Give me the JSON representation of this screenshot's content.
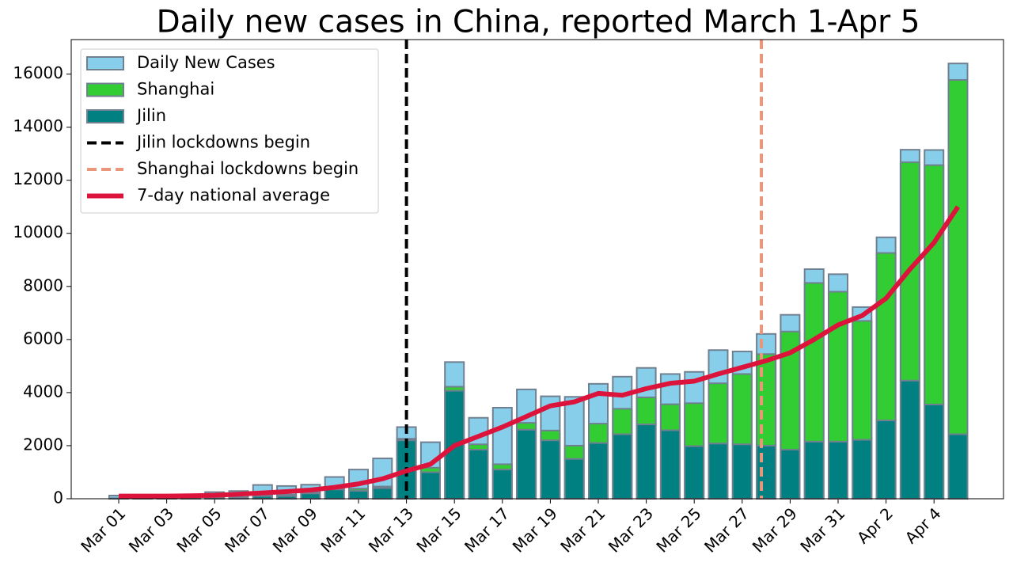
{
  "chart_data": {
    "type": "bar",
    "title": "Daily new cases in China, reported March 1-Apr 5",
    "categories": [
      "Mar 01",
      null,
      "Mar 03",
      null,
      "Mar 05",
      null,
      "Mar 07",
      null,
      "Mar 09",
      null,
      "Mar 11",
      null,
      "Mar 13",
      null,
      "Mar 15",
      null,
      "Mar 17",
      null,
      "Mar 19",
      null,
      "Mar 21",
      null,
      "Mar 23",
      null,
      "Mar 25",
      null,
      "Mar 27",
      null,
      "Mar 29",
      null,
      "Mar 31",
      null,
      "Apr 2",
      null,
      "Apr 4",
      null
    ],
    "series": [
      {
        "name": "Daily New Cases",
        "type": "bar",
        "color": "#87ceeb",
        "values": [
          120,
          100,
          100,
          100,
          250,
          290,
          520,
          480,
          530,
          820,
          1100,
          1520,
          2700,
          2130,
          5150,
          3050,
          3430,
          4120,
          3860,
          3840,
          4330,
          4600,
          4930,
          4700,
          4780,
          5600,
          5550,
          6210,
          6930,
          8650,
          8460,
          7220,
          9850,
          13150,
          13140,
          16400
        ]
      },
      {
        "name": "Shanghai",
        "type": "bar",
        "color": "#32cd32",
        "stack_on": "Jilin",
        "values": [
          0,
          0,
          0,
          0,
          0,
          10,
          20,
          50,
          40,
          60,
          80,
          60,
          60,
          170,
          150,
          200,
          200,
          260,
          370,
          500,
          730,
          960,
          1020,
          980,
          1620,
          2270,
          2650,
          3450,
          4450,
          5980,
          5650,
          4480,
          6310,
          8230,
          9020,
          13350
        ]
      },
      {
        "name": "Jilin",
        "type": "bar",
        "color": "#008080",
        "values": [
          20,
          10,
          10,
          10,
          30,
          50,
          100,
          100,
          200,
          350,
          300,
          400,
          2200,
          1000,
          4070,
          1850,
          1100,
          2600,
          2200,
          1500,
          2100,
          2430,
          2800,
          2580,
          1980,
          2080,
          2050,
          2000,
          1850,
          2150,
          2150,
          2220,
          2950,
          4450,
          3550,
          2430
        ]
      },
      {
        "name": "7-day national average",
        "type": "line",
        "color": "#dc143c",
        "values": [
          100,
          100,
          100,
          110,
          130,
          170,
          220,
          270,
          330,
          430,
          560,
          750,
          1050,
          1300,
          2000,
          2350,
          2700,
          3100,
          3500,
          3650,
          3970,
          3900,
          4150,
          4350,
          4430,
          4700,
          4950,
          5200,
          5500,
          6000,
          6550,
          6900,
          7550,
          8650,
          9650,
          11000
        ]
      }
    ],
    "vlines": [
      {
        "name": "Jilin lockdowns begin",
        "x": 12,
        "color": "#000000"
      },
      {
        "name": "Shanghai lockdowns begin",
        "x": 26.8,
        "color": "#e9967a"
      }
    ],
    "ylim": [
      0,
      17300
    ],
    "yticks": [
      0,
      2000,
      4000,
      6000,
      8000,
      10000,
      12000,
      14000,
      16000
    ],
    "legend": "upper left",
    "grid": false
  }
}
